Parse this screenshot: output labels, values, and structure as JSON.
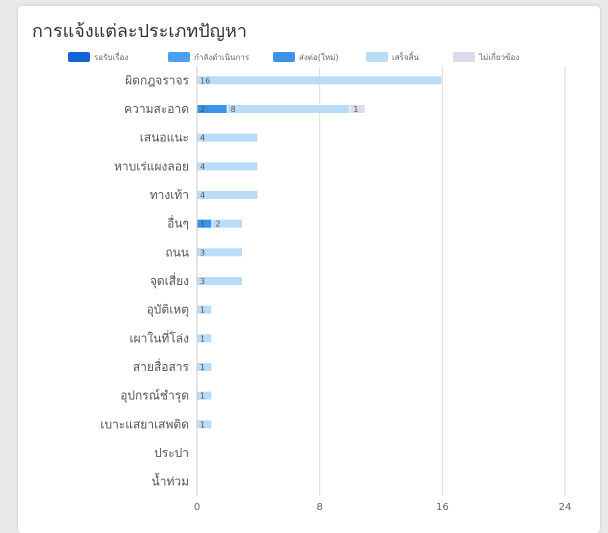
{
  "title": "การแจ้งแต่ละประเภทปัญหา",
  "legend_items": [
    {
      "label": "รอรับเรื่อง",
      "color": "#1565d8"
    },
    {
      "label": "กำลังดำเนินการ",
      "color": "#4aa0f0"
    },
    {
      "label": "ส่งต่อ(ใหม่)",
      "color": "#3a93e6"
    },
    {
      "label": "เสร็จสิ้น",
      "color": "#b9dcf8"
    },
    {
      "label": "ไม่เกี่ยวข้อง",
      "color": "#dcdbe9"
    }
  ],
  "chart_data": {
    "type": "bar",
    "orientation": "horizontal",
    "stacked": true,
    "title": "การแจ้งแต่ละประเภทปัญหา",
    "categories": [
      "ผิดกฎจราจร",
      "ความสะอาด",
      "เสนอแนะ",
      "หาบเร่แผงลอย",
      "ทางเท้า",
      "อื่นๆ",
      "ถนน",
      "จุดเสี่ยง",
      "อุบัติเหตุ",
      "เผาในที่โล่ง",
      "สายสื่อสาร",
      "อุปกรณ์ชำรุด",
      "เบาะแสยาเสพติด",
      "ประปา",
      "น้ำท่วม"
    ],
    "series": [
      {
        "name": "รอรับเรื่อง",
        "color": "#1565d8",
        "values": [
          0,
          0,
          0,
          0,
          0,
          0,
          0,
          0,
          0,
          0,
          0,
          0,
          0,
          0,
          0
        ]
      },
      {
        "name": "กำลังดำเนินการ",
        "color": "#4aa0f0",
        "values": [
          0,
          0,
          0,
          0,
          0,
          0,
          0,
          0,
          0,
          0,
          0,
          0,
          0,
          0,
          0
        ]
      },
      {
        "name": "ส่งต่อ(ใหม่)",
        "color": "#3a93e6",
        "values": [
          0,
          2,
          0,
          0,
          0,
          1,
          0,
          0,
          0,
          0,
          0,
          0,
          0,
          0,
          0
        ]
      },
      {
        "name": "เสร็จสิ้น",
        "color": "#b9dcf8",
        "values": [
          16,
          8,
          4,
          4,
          4,
          2,
          3,
          3,
          1,
          1,
          1,
          1,
          1,
          0,
          0
        ]
      },
      {
        "name": "ไม่เกี่ยวข้อง",
        "color": "#dcdbe9",
        "values": [
          0,
          1,
          0,
          0,
          0,
          0,
          0,
          0,
          0,
          0,
          0,
          0,
          0,
          0,
          0
        ]
      }
    ],
    "xlim": [
      0,
      24
    ],
    "xticks": [
      0,
      8,
      16,
      24
    ],
    "legend": "top",
    "grid": true
  }
}
